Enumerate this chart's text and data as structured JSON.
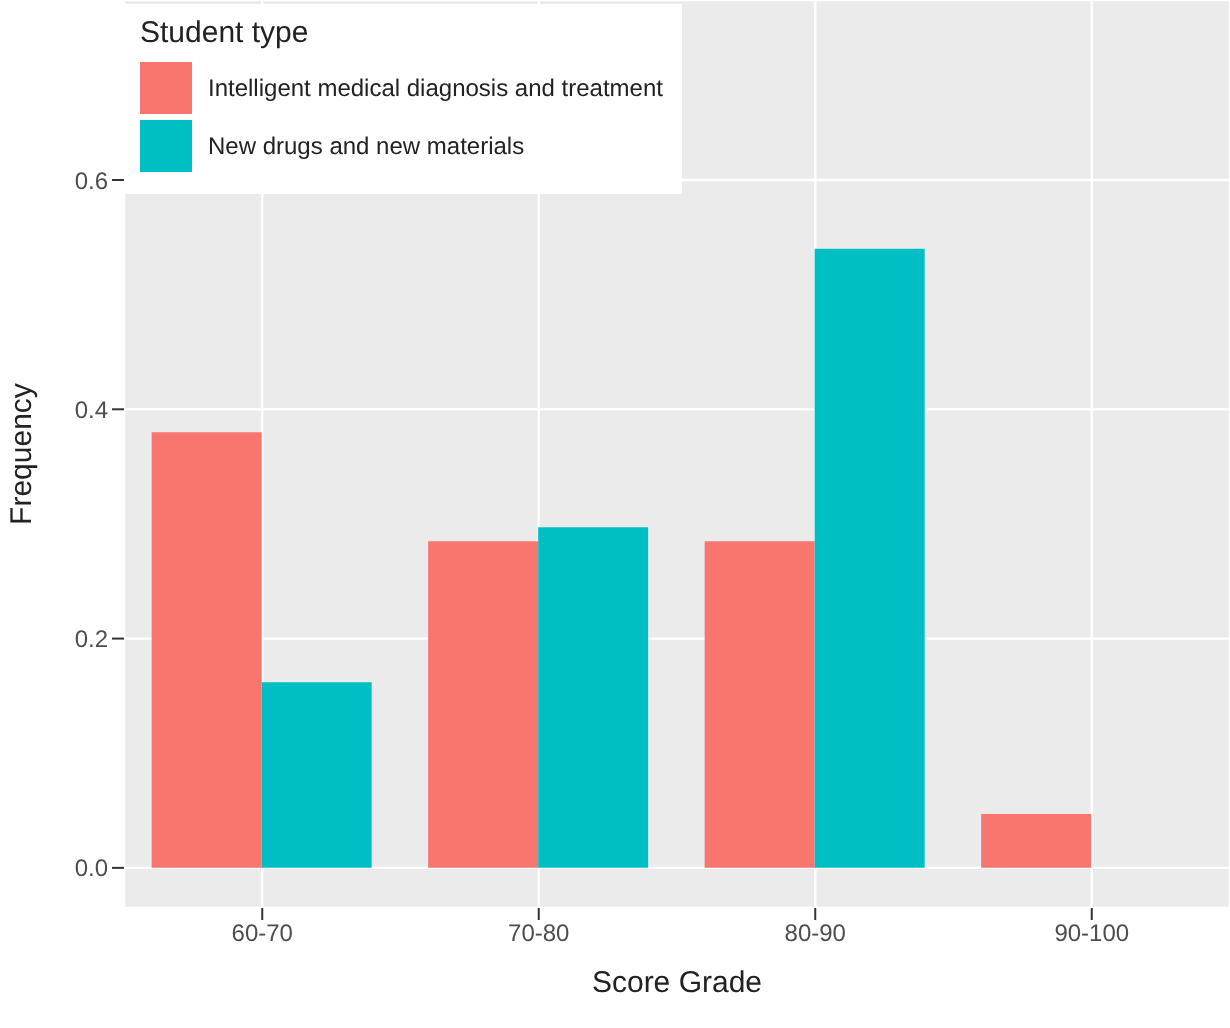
{
  "chart_data": {
    "type": "bar",
    "xlabel": "Score Grade",
    "ylabel": "Frequency",
    "legend_title": "Student type",
    "categories": [
      "60-70",
      "70-80",
      "80-90",
      "90-100"
    ],
    "series": [
      {
        "name": "Intelligent medical diagnosis and treatment",
        "color": "#f8766d",
        "values": [
          0.38,
          0.285,
          0.285,
          0.047
        ]
      },
      {
        "name": "New drugs and new materials",
        "color": "#00bfc4",
        "values": [
          0.162,
          0.297,
          0.54,
          0
        ]
      }
    ],
    "ylim": [
      -0.035,
      0.757
    ],
    "yticks": [
      {
        "value": 0,
        "label": "0.0"
      },
      {
        "value": 0.2,
        "label": "0.2"
      },
      {
        "value": 0.4,
        "label": "0.4"
      },
      {
        "value": 0.6,
        "label": "0.6"
      }
    ],
    "grid": true,
    "legend": "top left"
  }
}
